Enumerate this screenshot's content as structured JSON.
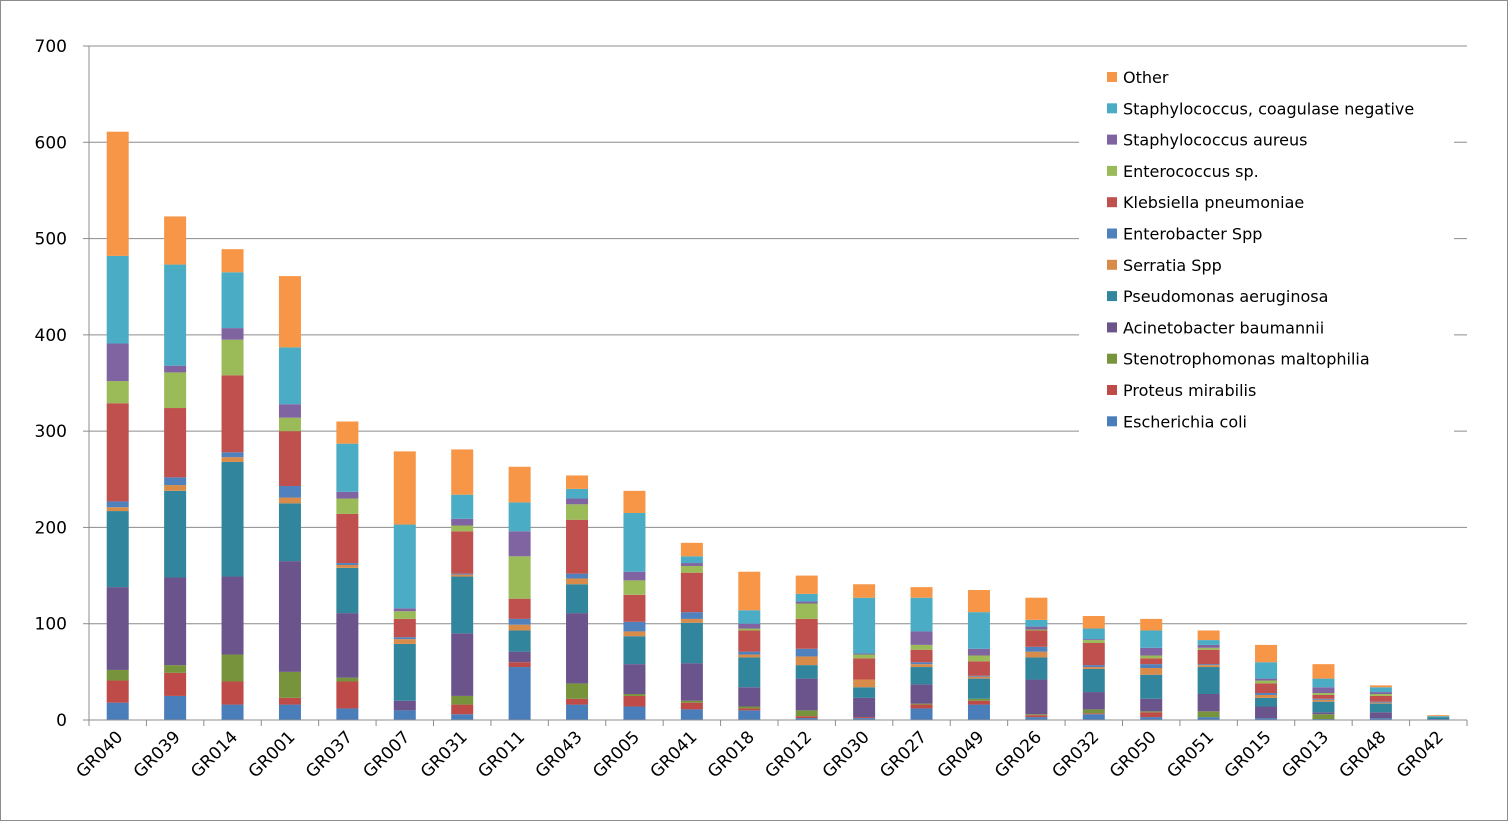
{
  "chart_data": {
    "type": "bar",
    "stacked": true,
    "title": "",
    "xlabel": "",
    "ylabel": "",
    "ylim": [
      0,
      700
    ],
    "yticks": [
      "0",
      "100",
      "200",
      "300",
      "400",
      "500",
      "600",
      "700"
    ],
    "grid": true,
    "legend_position": "top-right",
    "categories": [
      "GR040",
      "GR039",
      "GR014",
      "GR001",
      "GR037",
      "GR007",
      "GR031",
      "GR011",
      "GR043",
      "GR005",
      "GR041",
      "GR018",
      "GR012",
      "GR030",
      "GR027",
      "GR049",
      "GR026",
      "GR032",
      "GR050",
      "GR051",
      "GR015",
      "GR013",
      "GR048",
      "GR042"
    ],
    "series": [
      {
        "name": "Escherichia coli",
        "color": "#4a7ebb",
        "values": [
          18,
          25,
          16,
          16,
          12,
          10,
          6,
          55,
          16,
          14,
          11,
          10,
          2,
          2,
          12,
          16,
          3,
          6,
          3,
          3,
          2,
          1,
          2,
          1
        ]
      },
      {
        "name": "Proteus mirabilis",
        "color": "#be4b48",
        "values": [
          23,
          24,
          24,
          7,
          28,
          0,
          10,
          5,
          6,
          11,
          7,
          2,
          2,
          1,
          4,
          4,
          2,
          1,
          5,
          0,
          0,
          0,
          0,
          0
        ]
      },
      {
        "name": "Stenotrophomonas maltophilia",
        "color": "#77933c",
        "values": [
          11,
          8,
          28,
          27,
          4,
          0,
          9,
          0,
          16,
          2,
          2,
          2,
          6,
          0,
          1,
          2,
          1,
          4,
          1,
          6,
          0,
          5,
          0,
          0
        ]
      },
      {
        "name": "Acinetobacter baumannii",
        "color": "#6b538c",
        "values": [
          86,
          91,
          81,
          115,
          67,
          10,
          65,
          11,
          73,
          31,
          39,
          20,
          33,
          20,
          20,
          0,
          36,
          18,
          13,
          18,
          12,
          2,
          6,
          0
        ]
      },
      {
        "name": "Pseudomonas aeruginosa",
        "color": "#31859c",
        "values": [
          79,
          90,
          119,
          60,
          47,
          59,
          59,
          22,
          30,
          29,
          42,
          31,
          14,
          11,
          18,
          21,
          23,
          24,
          25,
          28,
          9,
          11,
          9,
          2
        ]
      },
      {
        "name": "Serratia Spp",
        "color": "#d98b4a",
        "values": [
          4,
          6,
          5,
          6,
          3,
          5,
          2,
          6,
          6,
          5,
          4,
          3,
          9,
          8,
          3,
          2,
          6,
          2,
          7,
          2,
          3,
          2,
          1,
          0
        ]
      },
      {
        "name": "Enterobacter Spp",
        "color": "#4f81bd",
        "values": [
          6,
          8,
          5,
          12,
          2,
          2,
          1,
          6,
          5,
          10,
          7,
          3,
          8,
          0,
          2,
          1,
          5,
          2,
          4,
          1,
          2,
          1,
          1,
          0
        ]
      },
      {
        "name": "Klebsiella pneumoniae",
        "color": "#c0504d",
        "values": [
          102,
          72,
          80,
          57,
          51,
          19,
          44,
          21,
          56,
          28,
          41,
          22,
          31,
          22,
          13,
          15,
          17,
          23,
          6,
          15,
          10,
          4,
          6,
          0
        ]
      },
      {
        "name": "Enterococcus sp.",
        "color": "#9bbb59",
        "values": [
          23,
          37,
          37,
          14,
          16,
          8,
          6,
          44,
          16,
          15,
          7,
          2,
          16,
          4,
          5,
          6,
          1,
          3,
          3,
          2,
          3,
          2,
          2,
          0
        ]
      },
      {
        "name": "Staphylococcus aureus",
        "color": "#8064a2",
        "values": [
          39,
          7,
          12,
          14,
          7,
          3,
          7,
          26,
          6,
          9,
          3,
          5,
          2,
          1,
          14,
          7,
          3,
          1,
          8,
          3,
          2,
          6,
          2,
          0
        ]
      },
      {
        "name": "Staphylococcus, coagulase negative",
        "color": "#4bacc6",
        "values": [
          91,
          105,
          58,
          59,
          50,
          87,
          25,
          30,
          10,
          61,
          7,
          14,
          8,
          58,
          35,
          38,
          7,
          11,
          18,
          5,
          17,
          9,
          5,
          1
        ]
      },
      {
        "name": "Other",
        "color": "#f79646",
        "values": [
          129,
          50,
          24,
          74,
          23,
          76,
          47,
          37,
          14,
          23,
          14,
          40,
          19,
          14,
          11,
          23,
          23,
          13,
          12,
          10,
          18,
          15,
          2,
          1
        ]
      }
    ]
  }
}
